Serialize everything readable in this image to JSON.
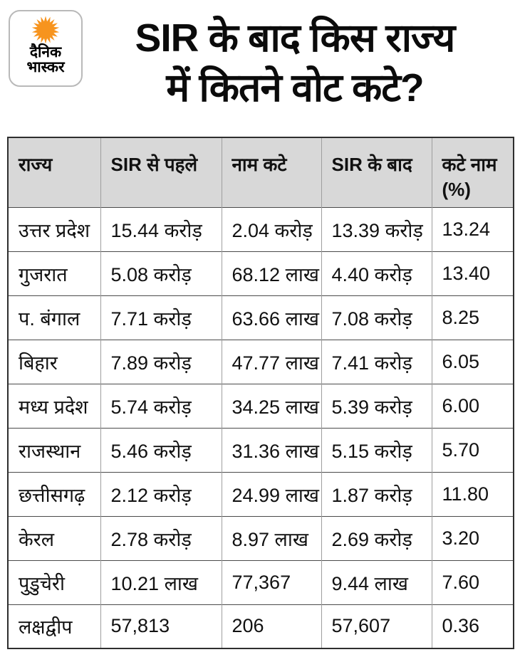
{
  "brand": {
    "name": "Dainik Bhaskar",
    "logo_line1": "दैनिक",
    "logo_line2": "भास्कर",
    "sun_color": "#F7941E"
  },
  "title": {
    "line1": "SIR के बाद किस राज्य",
    "line2": "में कितने वोट कटे?"
  },
  "table": {
    "headers": [
      "राज्य",
      "SIR से पहले",
      "नाम कटे",
      "SIR के बाद",
      "कटे नाम (%)"
    ],
    "rows": [
      [
        "उत्तर प्रदेश",
        "15.44 करोड़",
        "2.04 करोड़",
        "13.39 करोड़",
        "13.24"
      ],
      [
        "गुजरात",
        "5.08 करोड़",
        "68.12 लाख",
        "4.40 करोड़",
        "13.40"
      ],
      [
        "प. बंगाल",
        "7.71 करोड़",
        "63.66 लाख",
        "7.08 करोड़",
        "8.25"
      ],
      [
        "बिहार",
        "7.89 करोड़",
        "47.77 लाख",
        "7.41 करोड़",
        "6.05"
      ],
      [
        "मध्य प्रदेश",
        "5.74 करोड़",
        "34.25 लाख",
        "5.39 करोड़",
        "6.00"
      ],
      [
        "राजस्थान",
        "5.46 करोड़",
        "31.36 लाख",
        "5.15 करोड़",
        "5.70"
      ],
      [
        "छत्तीसगढ़",
        "2.12 करोड़",
        "24.99 लाख",
        "1.87 करोड़",
        "11.80"
      ],
      [
        "केरल",
        "2.78 करोड़",
        "8.97 लाख",
        "2.69 करोड़",
        "3.20"
      ],
      [
        "पुडुचेरी",
        "10.21 लाख",
        "77,367",
        "9.44 लाख",
        "7.60"
      ],
      [
        "लक्षद्वीप",
        "57,813",
        "206",
        "57,607",
        "0.36"
      ]
    ]
  },
  "colors": {
    "header_bg": "#d8d8d8",
    "outer_border": "#2e2e2e",
    "row_border": "#4a4a4a",
    "col_border": "#9e9e9e",
    "title_text": "#0b0b0b",
    "sun": "#F7941E"
  },
  "chart_data": {
    "type": "table",
    "title": "SIR के बाद किस राज्य में कितने वोट कटे?",
    "columns": [
      "राज्य",
      "SIR से पहले",
      "नाम कटे",
      "SIR के बाद",
      "कटे नाम (%)"
    ],
    "rows": [
      {
        "state": "उत्तर प्रदेश",
        "before_sir": "15.44 करोड़",
        "names_cut": "2.04 करोड़",
        "after_sir": "13.39 करोड़",
        "cut_percent": 13.24
      },
      {
        "state": "गुजरात",
        "before_sir": "5.08 करोड़",
        "names_cut": "68.12 लाख",
        "after_sir": "4.40 करोड़",
        "cut_percent": 13.4
      },
      {
        "state": "प. बंगाल",
        "before_sir": "7.71 करोड़",
        "names_cut": "63.66 लाख",
        "after_sir": "7.08 करोड़",
        "cut_percent": 8.25
      },
      {
        "state": "बिहार",
        "before_sir": "7.89 करोड़",
        "names_cut": "47.77 लाख",
        "after_sir": "7.41 करोड़",
        "cut_percent": 6.05
      },
      {
        "state": "मध्य प्रदेश",
        "before_sir": "5.74 करोड़",
        "names_cut": "34.25 लाख",
        "after_sir": "5.39 करोड़",
        "cut_percent": 6.0
      },
      {
        "state": "राजस्थान",
        "before_sir": "5.46 करोड़",
        "names_cut": "31.36 लाख",
        "after_sir": "5.15 करोड़",
        "cut_percent": 5.7
      },
      {
        "state": "छत्तीसगढ़",
        "before_sir": "2.12 करोड़",
        "names_cut": "24.99 लाख",
        "after_sir": "1.87 करोड़",
        "cut_percent": 11.8
      },
      {
        "state": "केरल",
        "before_sir": "2.78 करोड़",
        "names_cut": "8.97 लाख",
        "after_sir": "2.69 करोड़",
        "cut_percent": 3.2
      },
      {
        "state": "पुडुचेरी",
        "before_sir": "10.21 लाख",
        "names_cut": "77,367",
        "after_sir": "9.44 लाख",
        "cut_percent": 7.6
      },
      {
        "state": "लक्षद्वीप",
        "before_sir": "57,813",
        "names_cut": "206",
        "after_sir": "57,607",
        "cut_percent": 0.36
      }
    ]
  }
}
